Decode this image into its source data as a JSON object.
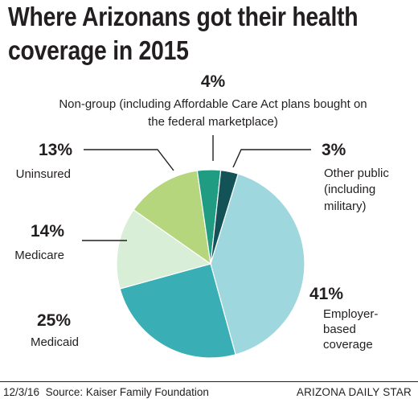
{
  "title_lines": [
    "Where Arizonans got their health",
    "coverage in 2015"
  ],
  "chart_data": {
    "type": "pie",
    "title": "Where Arizonans got their health coverage in 2015",
    "unit": "%",
    "slices": [
      {
        "label_lines": [
          "Employer-",
          "based",
          "coverage"
        ],
        "value": 41,
        "pct_text": "41%",
        "color": "#9ed7de"
      },
      {
        "label_lines": [
          "Medicaid"
        ],
        "value": 25,
        "pct_text": "25%",
        "color": "#3aaeb5"
      },
      {
        "label_lines": [
          "Medicare"
        ],
        "value": 14,
        "pct_text": "14%",
        "color": "#d9eed6"
      },
      {
        "label_lines": [
          "Uninsured"
        ],
        "value": 13,
        "pct_text": "13%",
        "color": "#b5d67d"
      },
      {
        "label_lines": [
          "Non-group (including Affordable Care Act plans bought on",
          "the federal marketplace)"
        ],
        "value": 4,
        "pct_text": "4%",
        "color": "#1f9c82"
      },
      {
        "label_lines": [
          "Other public",
          "(including",
          "military)"
        ],
        "value": 3,
        "pct_text": "3%",
        "color": "#135257"
      }
    ]
  },
  "footer": {
    "date": "12/3/16",
    "source": "Source: Kaiser Family Foundation",
    "credit": "ARIZONA DAILY STAR"
  }
}
